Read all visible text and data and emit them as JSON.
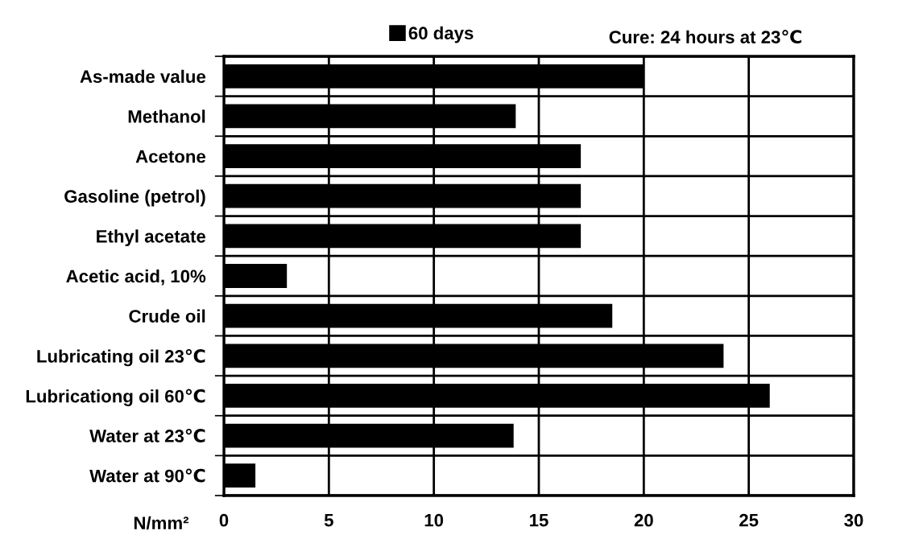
{
  "chart_data": {
    "type": "bar",
    "orientation": "horizontal",
    "categories": [
      "As-made value",
      "Methanol",
      "Acetone",
      "Gasoline (petrol)",
      "Ethyl acetate",
      "Acetic acid, 10%",
      "Crude oil",
      "Lubricating oil 23℃",
      "Lubricationg oil 60℃",
      "Water at 23℃",
      "Water at 90℃"
    ],
    "series": [
      {
        "name": "60 days",
        "color": "#000000",
        "values": [
          20.0,
          13.9,
          17.0,
          17.0,
          17.0,
          3.0,
          18.5,
          23.8,
          26.0,
          13.8,
          1.5
        ]
      }
    ],
    "xlim": [
      0,
      30
    ],
    "xticks": [
      0,
      5,
      10,
      15,
      20,
      25,
      30
    ],
    "xlabel": "N/mm²",
    "grid": true,
    "legend": "top",
    "annotations": [
      "Cure: 24 hours at 23℃"
    ]
  }
}
